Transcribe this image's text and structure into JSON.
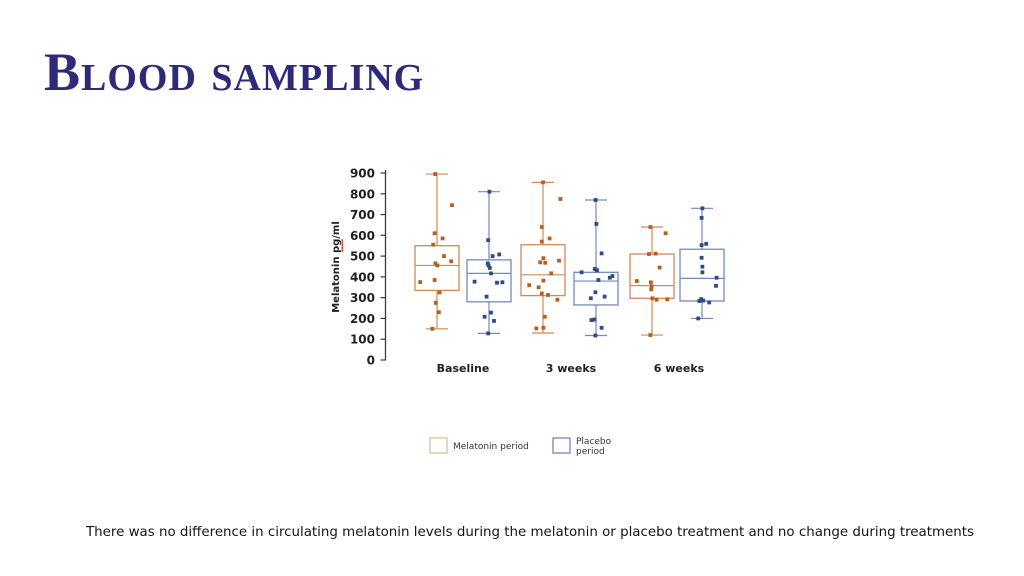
{
  "slide": {
    "title": "Blood sampling",
    "caption": "There was no difference in circulating melatonin levels during the melatonin or placebo treatment and no change during treatments"
  },
  "colors": {
    "title": "#2e2a7a",
    "caption_text": "#141414",
    "axis": "#3a3a3a",
    "melatonin": {
      "box": "#d2895a",
      "point": "#b55f21"
    },
    "placebo": {
      "box": "#7388bd",
      "point": "#2e4b87"
    }
  },
  "chart_data": {
    "type": "boxplot-scatter",
    "title": "",
    "ylabel": "Melatonin pg/ml",
    "ylabel_misspell_underline": "pg",
    "xlabel": "",
    "ylim": [
      0,
      900
    ],
    "yticks": [
      0,
      100,
      200,
      300,
      400,
      500,
      600,
      700,
      800,
      900
    ],
    "grid": false,
    "legend_position": "bottom",
    "categories": [
      "Baseline",
      "3 weeks",
      "6 weeks"
    ],
    "legend": [
      {
        "lines": [
          "Melatonin period"
        ],
        "swatch": "#d9c79c"
      },
      {
        "lines": [
          "Placebo",
          "period"
        ],
        "swatch": "#7b8ec7"
      }
    ],
    "series": [
      {
        "name": "Melatonin period",
        "color_key": "melatonin",
        "boxes": [
          {
            "category": "Baseline",
            "whisker_low": 150,
            "q1": 335,
            "median": 455,
            "q3": 550,
            "whisker_high": 895,
            "points": [
              [
                895,
                -0.09
              ],
              [
                745,
                0.75
              ],
              [
                610,
                -0.12
              ],
              [
                585,
                0.28
              ],
              [
                555,
                -0.19
              ],
              [
                500,
                0.35
              ],
              [
                475,
                0.71
              ],
              [
                465,
                -0.08
              ],
              [
                455,
                0.02
              ],
              [
                385,
                -0.12
              ],
              [
                375,
                -0.84
              ],
              [
                325,
                0.13
              ],
              [
                275,
                -0.06
              ],
              [
                230,
                0.09
              ],
              [
                150,
                -0.23
              ]
            ]
          },
          {
            "category": "3 weeks",
            "whisker_low": 130,
            "q1": 310,
            "median": 410,
            "q3": 555,
            "whisker_high": 855,
            "points": [
              [
                855,
                0
              ],
              [
                775,
                0.87
              ],
              [
                640,
                -0.06
              ],
              [
                585,
                0.33
              ],
              [
                570,
                -0.06
              ],
              [
                490,
                0.02
              ],
              [
                478,
                0.8
              ],
              [
                470,
                -0.14
              ],
              [
                468,
                0.11
              ],
              [
                417,
                0.41
              ],
              [
                382,
                0.02
              ],
              [
                360,
                -0.69
              ],
              [
                350,
                -0.22
              ],
              [
                320,
                -0.06
              ],
              [
                313,
                0.25
              ],
              [
                290,
                0.72
              ],
              [
                208,
                0.09
              ],
              [
                155,
                0.02
              ],
              [
                152,
                -0.33
              ]
            ]
          },
          {
            "category": "6 weeks",
            "whisker_low": 120,
            "q1": 297,
            "median": 358,
            "q3": 510,
            "whisker_high": 640,
            "points": [
              [
                640,
                -0.08
              ],
              [
                610,
                0.68
              ],
              [
                512,
                0.18
              ],
              [
                510,
                -0.15
              ],
              [
                445,
                0.38
              ],
              [
                380,
                -0.76
              ],
              [
                374,
                -0.06
              ],
              [
                355,
                -0.02
              ],
              [
                340,
                -0.04
              ],
              [
                297,
                0.02
              ],
              [
                292,
                0.76
              ],
              [
                290,
                0.23
              ],
              [
                120,
                -0.08
              ]
            ]
          }
        ]
      },
      {
        "name": "Placebo period",
        "color_key": "placebo",
        "boxes": [
          {
            "category": "Baseline",
            "whisker_low": 128,
            "q1": 280,
            "median": 417,
            "q3": 482,
            "whisker_high": 810,
            "points": [
              [
                810,
                0.02
              ],
              [
                577,
                -0.04
              ],
              [
                508,
                0.51
              ],
              [
                500,
                0.18
              ],
              [
                465,
                -0.06
              ],
              [
                455,
                -0.02
              ],
              [
                443,
                0.04
              ],
              [
                417,
                0.1
              ],
              [
                377,
                -0.72
              ],
              [
                374,
                0.67
              ],
              [
                372,
                0.4
              ],
              [
                305,
                -0.12
              ],
              [
                228,
                0.1
              ],
              [
                208,
                -0.22
              ],
              [
                188,
                0.25
              ],
              [
                128,
                -0.04
              ]
            ]
          },
          {
            "category": "3 weeks",
            "whisker_low": 118,
            "q1": 265,
            "median": 380,
            "q3": 422,
            "whisker_high": 770,
            "points": [
              [
                770,
                -0.02
              ],
              [
                655,
                0.02
              ],
              [
                513,
                0.28
              ],
              [
                438,
                -0.06
              ],
              [
                432,
                0.05
              ],
              [
                422,
                -0.72
              ],
              [
                404,
                0.82
              ],
              [
                396,
                0.69
              ],
              [
                385,
                0.12
              ],
              [
                326,
                -0.03
              ],
              [
                305,
                0.43
              ],
              [
                297,
                -0.26
              ],
              [
                195,
                -0.08
              ],
              [
                192,
                -0.23
              ],
              [
                155,
                0.28
              ],
              [
                118,
                -0.03
              ]
            ]
          },
          {
            "category": "6 weeks",
            "whisker_low": 200,
            "q1": 284,
            "median": 393,
            "q3": 533,
            "whisker_high": 730,
            "points": [
              [
                730,
                0.02
              ],
              [
                684,
                -0.02
              ],
              [
                559,
                0.21
              ],
              [
                553,
                -0.02
              ],
              [
                492,
                -0.02
              ],
              [
                449,
                0.02
              ],
              [
                422,
                0.02
              ],
              [
                396,
                0.73
              ],
              [
                357,
                0.7
              ],
              [
                293,
                -0.04
              ],
              [
                286,
                0.06
              ],
              [
                284,
                -0.13
              ],
              [
                277,
                0.36
              ],
              [
                200,
                -0.19
              ]
            ]
          }
        ]
      }
    ]
  }
}
